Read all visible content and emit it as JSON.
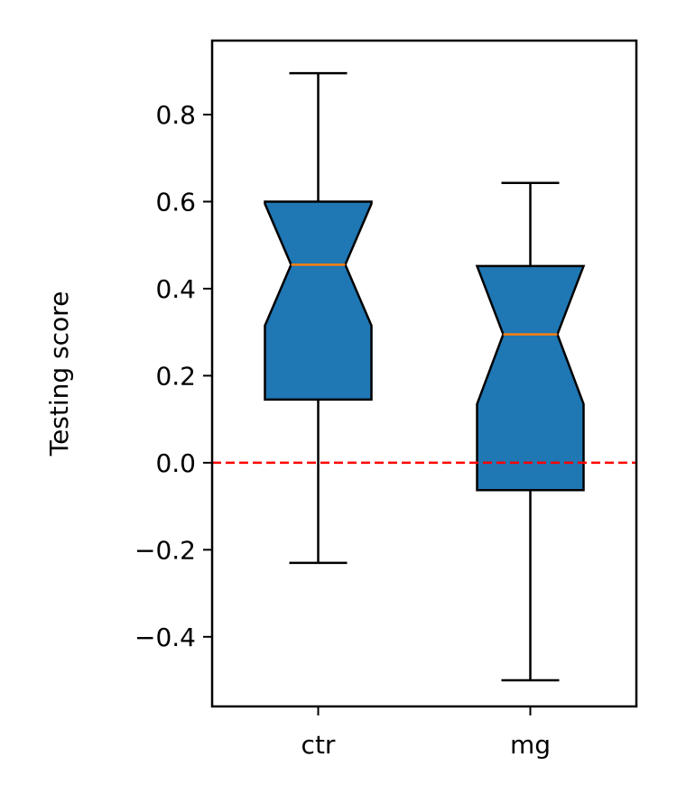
{
  "chart_data": {
    "type": "boxplot",
    "notched": true,
    "title": "",
    "xlabel": "",
    "ylabel": "Testing score",
    "ylim": [
      -0.56,
      0.97
    ],
    "yticks": [
      -0.4,
      -0.2,
      0.0,
      0.2,
      0.4,
      0.6,
      0.8
    ],
    "ytick_labels": [
      "−0.4",
      "−0.2",
      "0.0",
      "0.2",
      "0.4",
      "0.6",
      "0.8"
    ],
    "categories": [
      "ctr",
      "mg"
    ],
    "boxes": [
      {
        "name": "ctr",
        "whisker_low": -0.23,
        "q1": 0.145,
        "median": 0.455,
        "q3": 0.6,
        "whisker_high": 0.895,
        "notch_low": 0.315,
        "notch_high": 0.595
      },
      {
        "name": "mg",
        "whisker_low": -0.5,
        "q1": -0.063,
        "median": 0.295,
        "q3": 0.452,
        "whisker_high": 0.643,
        "notch_low": 0.135,
        "notch_high": 0.452
      }
    ],
    "reference_line": {
      "y": 0.0,
      "color": "#ff0000",
      "style": "dashed"
    },
    "colors": {
      "box_fill": "#1f77b4",
      "median": "#ff7f0e",
      "edge": "#000000"
    },
    "grid": false,
    "legend": "none"
  }
}
